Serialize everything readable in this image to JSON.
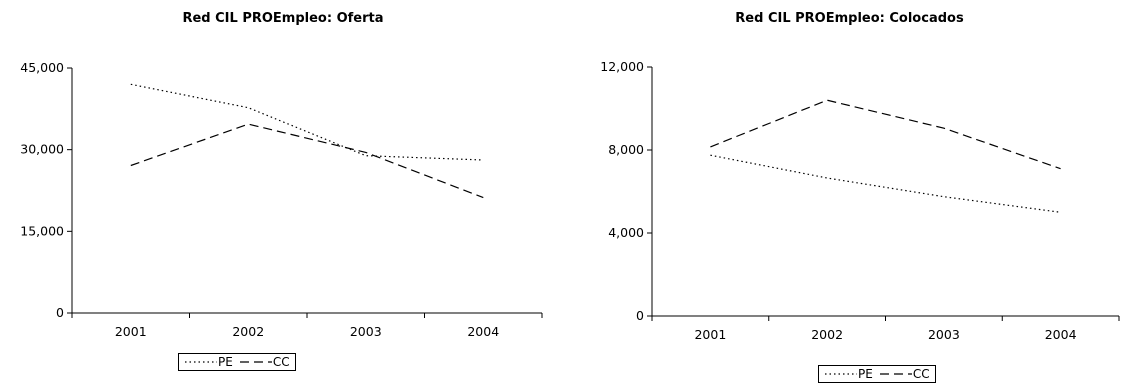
{
  "chart_data": [
    {
      "type": "line",
      "title": "Red CIL PROEmpleo: Oferta",
      "categories": [
        "2001",
        "2002",
        "2003",
        "2004"
      ],
      "ylim": [
        0,
        45000
      ],
      "yticks": [
        0,
        15000,
        30000,
        45000
      ],
      "ytick_labels": [
        "0",
        "15,000",
        "30,000",
        "45,000"
      ],
      "grid": false,
      "legend": "bottom",
      "series": [
        {
          "name": "PE",
          "style": "dotted",
          "values": [
            42000,
            37700,
            28900,
            28100
          ]
        },
        {
          "name": "CC",
          "style": "dashed",
          "values": [
            27100,
            34700,
            29500,
            21200
          ]
        }
      ]
    },
    {
      "type": "line",
      "title": "Red CIL PROEmpleo: Colocados",
      "categories": [
        "2001",
        "2002",
        "2003",
        "2004"
      ],
      "ylim": [
        0,
        12000
      ],
      "yticks": [
        0,
        4000,
        8000,
        12000
      ],
      "ytick_labels": [
        "0",
        "4,000",
        "8,000",
        "12,000"
      ],
      "grid": false,
      "legend": "bottom",
      "series": [
        {
          "name": "PE",
          "style": "dotted",
          "values": [
            7750,
            6650,
            5750,
            5000
          ]
        },
        {
          "name": "CC",
          "style": "dashed",
          "values": [
            8150,
            10400,
            9050,
            7100
          ]
        }
      ]
    }
  ],
  "colors": {
    "line": "#000000",
    "axis": "#000000",
    "background": "#ffffff"
  }
}
